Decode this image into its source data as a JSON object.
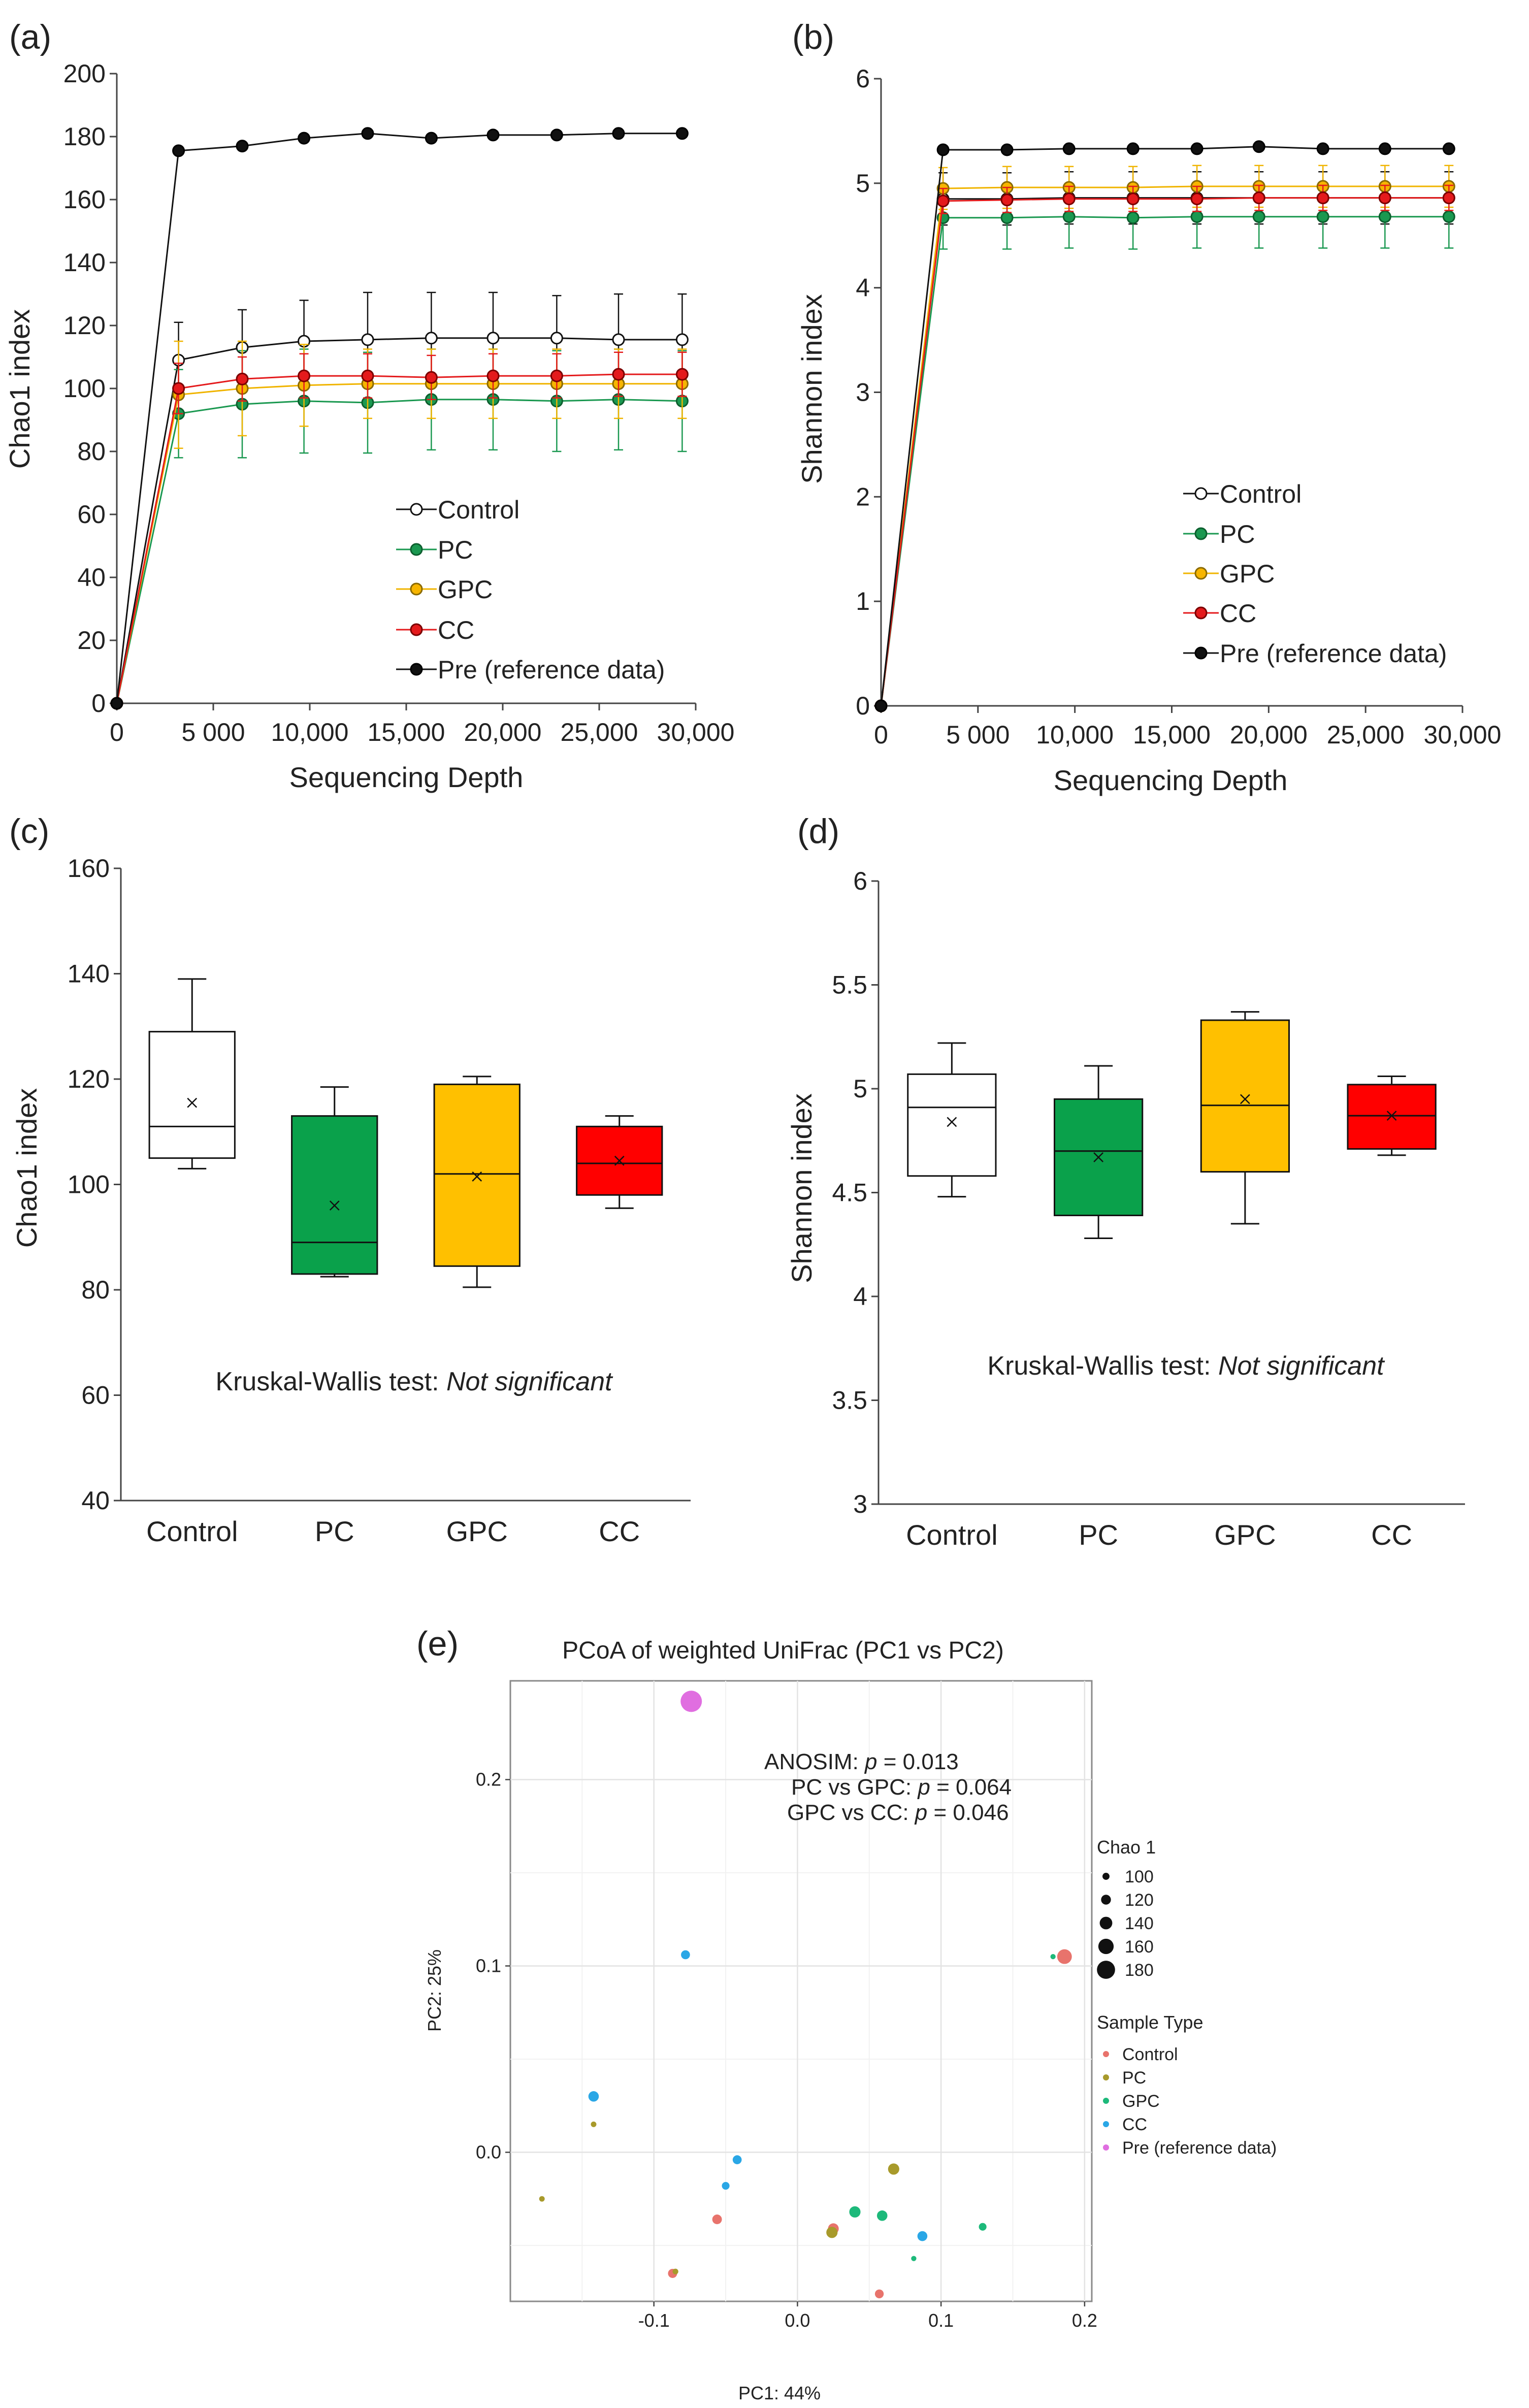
{
  "figure": {
    "a": {
      "panel_label": "(a)",
      "chart_data": {
        "type": "line",
        "ylabel": "Chao1 index",
        "xlabel": "Sequencing Depth",
        "ylim": [
          0,
          200
        ],
        "xlim": [
          0,
          30000
        ],
        "yticks": [
          "0",
          "20",
          "40",
          "60",
          "80",
          "100",
          "120",
          "140",
          "160",
          "180",
          "200"
        ],
        "xticks": [
          "0",
          "5 000",
          "10,000",
          "15,000",
          "20,000",
          "25,000",
          "30,000"
        ],
        "x": [
          0,
          3200,
          6500,
          9700,
          13000,
          16300,
          19500,
          22800,
          26000,
          29300
        ],
        "series": [
          {
            "name": "Control",
            "marker": "open",
            "line": "#111111",
            "fill": "#ffffff",
            "edge": "#111111",
            "err": "#111111",
            "values": [
              0,
              109,
              113,
              115,
              115.5,
              116,
              116,
              116,
              115.5,
              115.5
            ],
            "sd": [
              0,
              12,
              12,
              13,
              15,
              14.5,
              14.5,
              13.5,
              14.5,
              14.5
            ]
          },
          {
            "name": "PC",
            "marker": "filled",
            "line": "#1a9850",
            "fill": "#1a9850",
            "edge": "#0d5e2e",
            "err": "#1a9850",
            "values": [
              0,
              92,
              95,
              96,
              95.5,
              96.5,
              96.5,
              96,
              96.5,
              96
            ],
            "sd": [
              0,
              14,
              17,
              16.5,
              16,
              16,
              16,
              16,
              16,
              16
            ]
          },
          {
            "name": "GPC",
            "marker": "filled",
            "line": "#f0b400",
            "fill": "#f7b500",
            "edge": "#8a6a00",
            "err": "#f0b400",
            "values": [
              0,
              98,
              100,
              101,
              101.5,
              101.5,
              101.5,
              101.5,
              101.5,
              101.5
            ],
            "sd": [
              0,
              17,
              15,
              13,
              11,
              11,
              11,
              11,
              11,
              11
            ]
          },
          {
            "name": "CC",
            "marker": "filled",
            "line": "#e41a1c",
            "fill": "#e41a1c",
            "edge": "#7a0000",
            "err": "#e41a1c",
            "values": [
              0,
              100,
              103,
              104,
              104,
              103.5,
              104,
              104,
              104.5,
              104.5
            ],
            "sd": [
              0,
              8,
              7,
              7,
              7,
              7,
              7,
              7,
              7,
              7
            ]
          },
          {
            "name": "Pre (reference data)",
            "marker": "filled",
            "line": "#111111",
            "fill": "#111111",
            "edge": "#000000",
            "err": null,
            "values": [
              0,
              175.5,
              177,
              179.5,
              181,
              179.5,
              180.5,
              180.5,
              181,
              181
            ],
            "sd": [
              0,
              0,
              0,
              0,
              0,
              0,
              0,
              0,
              0,
              0
            ]
          }
        ]
      }
    },
    "b": {
      "panel_label": "(b)",
      "chart_data": {
        "type": "line",
        "ylabel": "Shannon index",
        "xlabel": "Sequencing Depth",
        "ylim": [
          0,
          6
        ],
        "xlim": [
          0,
          30000
        ],
        "yticks": [
          "0",
          "1",
          "2",
          "3",
          "4",
          "5",
          "6"
        ],
        "xticks": [
          "0",
          "5 000",
          "10,000",
          "15,000",
          "20,000",
          "25,000",
          "30,000"
        ],
        "x": [
          0,
          3200,
          6500,
          9700,
          13000,
          16300,
          19500,
          22800,
          26000,
          29300
        ],
        "series": [
          {
            "name": "Control",
            "marker": "open",
            "line": "#111111",
            "fill": "#ffffff",
            "edge": "#111111",
            "err": "#111111",
            "values": [
              0,
              4.85,
              4.85,
              4.86,
              4.86,
              4.86,
              4.86,
              4.86,
              4.86,
              4.86
            ],
            "sd": [
              0,
              0.25,
              0.25,
              0.25,
              0.25,
              0.25,
              0.25,
              0.25,
              0.25,
              0.25
            ]
          },
          {
            "name": "PC",
            "marker": "filled",
            "line": "#1a9850",
            "fill": "#1a9850",
            "edge": "#0d5e2e",
            "err": "#1a9850",
            "values": [
              0,
              4.67,
              4.67,
              4.68,
              4.67,
              4.68,
              4.68,
              4.68,
              4.68,
              4.68
            ],
            "sd": [
              0,
              0.3,
              0.3,
              0.3,
              0.3,
              0.3,
              0.3,
              0.3,
              0.3,
              0.3
            ]
          },
          {
            "name": "GPC",
            "marker": "filled",
            "line": "#f0b400",
            "fill": "#f7b500",
            "edge": "#8a6a00",
            "err": "#f0b400",
            "values": [
              0,
              4.95,
              4.96,
              4.96,
              4.96,
              4.97,
              4.97,
              4.97,
              4.97,
              4.97
            ],
            "sd": [
              0,
              0.2,
              0.2,
              0.2,
              0.2,
              0.2,
              0.2,
              0.2,
              0.2,
              0.2
            ]
          },
          {
            "name": "CC",
            "marker": "filled",
            "line": "#e41a1c",
            "fill": "#e41a1c",
            "edge": "#7a0000",
            "err": "#e41a1c",
            "values": [
              0,
              4.83,
              4.84,
              4.85,
              4.85,
              4.85,
              4.86,
              4.86,
              4.86,
              4.86
            ],
            "sd": [
              0,
              0.12,
              0.12,
              0.12,
              0.12,
              0.12,
              0.12,
              0.12,
              0.12,
              0.12
            ]
          },
          {
            "name": "Pre (reference data)",
            "marker": "filled",
            "line": "#111111",
            "fill": "#111111",
            "edge": "#000000",
            "err": null,
            "values": [
              0,
              5.32,
              5.32,
              5.33,
              5.33,
              5.33,
              5.35,
              5.33,
              5.33,
              5.33
            ],
            "sd": [
              0,
              0,
              0,
              0,
              0,
              0,
              0,
              0,
              0,
              0
            ]
          }
        ]
      }
    },
    "c": {
      "panel_label": "(c)",
      "chart_data": {
        "type": "box",
        "ylabel": "Chao1 index",
        "ylim": [
          40,
          160
        ],
        "yticks": [
          "40",
          "60",
          "80",
          "100",
          "120",
          "140",
          "160"
        ],
        "categories": [
          "Control",
          "PC",
          "GPC",
          "CC"
        ],
        "colors": [
          "#ffffff",
          "#0aa14b",
          "#ffc000",
          "#ff0000"
        ],
        "boxes": [
          {
            "min": 103,
            "q1": 105,
            "median": 111,
            "q3": 129,
            "max": 139,
            "mean": 115.5
          },
          {
            "min": 82.5,
            "q1": 83,
            "median": 89,
            "q3": 113,
            "max": 118.5,
            "mean": 96
          },
          {
            "min": 80.5,
            "q1": 84.5,
            "median": 102,
            "q3": 119,
            "max": 120.5,
            "mean": 101.5
          },
          {
            "min": 95.5,
            "q1": 98,
            "median": 104,
            "q3": 111,
            "max": 113,
            "mean": 104.5
          }
        ],
        "note_prefix": "Kruskal-Wallis test: ",
        "note_italic": "Not significant"
      }
    },
    "d": {
      "panel_label": "(d)",
      "chart_data": {
        "type": "box",
        "ylabel": "Shannon index",
        "ylim": [
          3,
          6
        ],
        "yticks": [
          "3",
          "3.5",
          "4",
          "4.5",
          "5",
          "5.5",
          "6"
        ],
        "categories": [
          "Control",
          "PC",
          "GPC",
          "CC"
        ],
        "colors": [
          "#ffffff",
          "#0aa14b",
          "#ffc000",
          "#ff0000"
        ],
        "boxes": [
          {
            "min": 4.48,
            "q1": 4.58,
            "median": 4.91,
            "q3": 5.07,
            "max": 5.22,
            "mean": 4.84
          },
          {
            "min": 4.28,
            "q1": 4.39,
            "median": 4.7,
            "q3": 4.95,
            "max": 5.11,
            "mean": 4.67
          },
          {
            "min": 4.35,
            "q1": 4.6,
            "median": 4.92,
            "q3": 5.33,
            "max": 5.37,
            "mean": 4.95
          },
          {
            "min": 4.68,
            "q1": 4.71,
            "median": 4.87,
            "q3": 5.02,
            "max": 5.06,
            "mean": 4.87
          }
        ],
        "note_prefix": "Kruskal-Wallis test: ",
        "note_italic": "Not significant"
      }
    },
    "e": {
      "panel_label": "(e)",
      "chart_data": {
        "type": "scatter",
        "title": "PCoA of weighted UniFrac (PC1 vs PC2)",
        "xlabel": "PC1: 44%",
        "ylabel": "PC2: 25%",
        "xlim": [
          -0.2,
          0.205
        ],
        "ylim": [
          -0.08,
          0.253
        ],
        "xticks": [
          -0.1,
          0,
          0.1,
          0.2
        ],
        "xtick_labels": [
          "-0.1",
          "0.0",
          "0.1",
          "0.2"
        ],
        "yticks": [
          0,
          0.1,
          0.2
        ],
        "ytick_labels": [
          "0.0",
          "0.1",
          "0.2"
        ],
        "annotations": [
          {
            "prefix": "ANOSIM: ",
            "italic": "p",
            "suffix": " = 0.013"
          },
          {
            "prefix": "PC vs GPC: ",
            "italic": "p",
            "suffix": " = 0.064"
          },
          {
            "prefix": "GPC vs CC: ",
            "italic": "p",
            "suffix": " = 0.046"
          }
        ],
        "size_legend": {
          "title": "Chao 1",
          "values": [
            100,
            120,
            140,
            160,
            180
          ]
        },
        "color_legend": {
          "title": "Sample Type",
          "groups": [
            {
              "name": "Control",
              "color": "#e8736c"
            },
            {
              "name": "PC",
              "color": "#a89a2b"
            },
            {
              "name": "GPC",
              "color": "#1db97a"
            },
            {
              "name": "CC",
              "color": "#2aa7e6"
            },
            {
              "name": "Pre (reference data)",
              "color": "#e06ee0"
            }
          ]
        },
        "points": [
          {
            "group": "Pre (reference data)",
            "x": -0.074,
            "y": 0.242,
            "chao1": 180
          },
          {
            "group": "CC",
            "x": -0.078,
            "y": 0.106,
            "chao1": 104
          },
          {
            "group": "Control",
            "x": 0.186,
            "y": 0.105,
            "chao1": 139
          },
          {
            "group": "GPC",
            "x": 0.178,
            "y": 0.105,
            "chao1": 81
          },
          {
            "group": "CC",
            "x": -0.142,
            "y": 0.03,
            "chao1": 113
          },
          {
            "group": "PC",
            "x": -0.142,
            "y": 0.015,
            "chao1": 83
          },
          {
            "group": "CC",
            "x": -0.042,
            "y": -0.004,
            "chao1": 104
          },
          {
            "group": "CC",
            "x": -0.05,
            "y": -0.018,
            "chao1": 96
          },
          {
            "group": "PC",
            "x": -0.178,
            "y": -0.025,
            "chao1": 83
          },
          {
            "group": "PC",
            "x": 0.067,
            "y": -0.009,
            "chao1": 118
          },
          {
            "group": "GPC",
            "x": 0.04,
            "y": -0.032,
            "chao1": 118
          },
          {
            "group": "GPC",
            "x": 0.059,
            "y": -0.034,
            "chao1": 113
          },
          {
            "group": "Control",
            "x": -0.056,
            "y": -0.036,
            "chao1": 108
          },
          {
            "group": "GPC",
            "x": 0.129,
            "y": -0.04,
            "chao1": 96
          },
          {
            "group": "Control",
            "x": 0.025,
            "y": -0.041,
            "chao1": 115
          },
          {
            "group": "PC",
            "x": 0.024,
            "y": -0.043,
            "chao1": 118
          },
          {
            "group": "CC",
            "x": 0.087,
            "y": -0.045,
            "chao1": 110
          },
          {
            "group": "GPC",
            "x": 0.081,
            "y": -0.057,
            "chao1": 81
          },
          {
            "group": "Control",
            "x": -0.087,
            "y": -0.065,
            "chao1": 105
          },
          {
            "group": "PC",
            "x": -0.085,
            "y": -0.064,
            "chao1": 84
          },
          {
            "group": "Control",
            "x": 0.057,
            "y": -0.076,
            "chao1": 103
          }
        ]
      }
    }
  }
}
